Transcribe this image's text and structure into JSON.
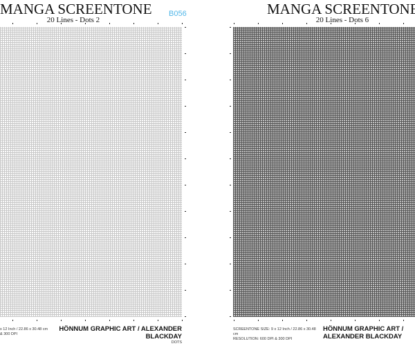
{
  "left_sheet": {
    "title": "MANGA SCREENTONE",
    "subtitle": "20 Lines - Dots 2",
    "code": "B056",
    "footer_line1": "x 12 Inch / 22.86 x 30.48 cm",
    "footer_line2": "& 300 DPI",
    "brand": "HÖNNUM GRAPHIC ART / ALEXANDER BLACKDAY",
    "brand_sub": "DOTS"
  },
  "right_sheet": {
    "title": "MANGA SCREENTONE",
    "subtitle": "20 Lines - Dots 6",
    "footer_line1": "SCREENTONE SIZE: 9 x 12 Inch / 22.86 x 30.48 cm",
    "footer_line2": "RESOLUTION: 600 DPI & 300 DPI",
    "brand": "HÖNNUM GRAPHIC ART / ALEXANDER BLACKDAY"
  }
}
